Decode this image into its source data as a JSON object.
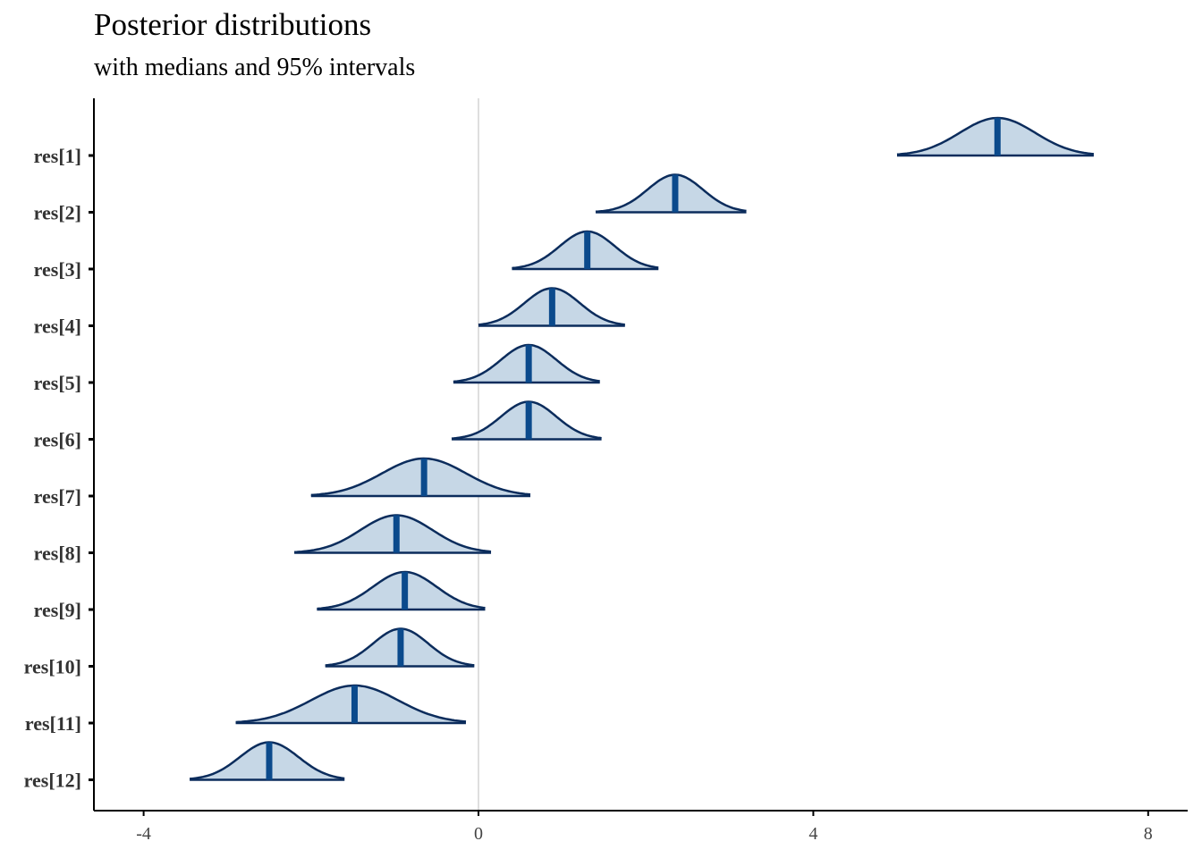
{
  "chart_data": {
    "type": "ridgeline",
    "title": "Posterior distributions",
    "subtitle": "with medians and 95% intervals",
    "xlim": [
      -4.6,
      8.5
    ],
    "x_ticks": [
      -4,
      0,
      4,
      8
    ],
    "x_tick_labels": [
      "-4",
      "0",
      "4",
      "8"
    ],
    "reference_line_x": 0,
    "colors": {
      "fill": "#c6d7e6",
      "outline": "#0b2c5c",
      "median": "#0b4a8c",
      "refline": "#dedede",
      "axis": "#000000"
    },
    "params": [
      {
        "label": "res[1]",
        "median": 6.2,
        "lo": 5.0,
        "hi": 7.35,
        "sd": 0.45
      },
      {
        "label": "res[2]",
        "median": 2.35,
        "lo": 1.4,
        "hi": 3.2,
        "sd": 0.33
      },
      {
        "label": "res[3]",
        "median": 1.3,
        "lo": 0.4,
        "hi": 2.15,
        "sd": 0.33
      },
      {
        "label": "res[4]",
        "median": 0.88,
        "lo": 0.0,
        "hi": 1.75,
        "sd": 0.33
      },
      {
        "label": "res[5]",
        "median": 0.6,
        "lo": -0.3,
        "hi": 1.45,
        "sd": 0.33
      },
      {
        "label": "res[6]",
        "median": 0.6,
        "lo": -0.32,
        "hi": 1.47,
        "sd": 0.33
      },
      {
        "label": "res[7]",
        "median": -0.65,
        "lo": -2.0,
        "hi": 0.62,
        "sd": 0.5
      },
      {
        "label": "res[8]",
        "median": -0.98,
        "lo": -2.2,
        "hi": 0.15,
        "sd": 0.43
      },
      {
        "label": "res[9]",
        "median": -0.88,
        "lo": -1.93,
        "hi": 0.08,
        "sd": 0.38
      },
      {
        "label": "res[10]",
        "median": -0.93,
        "lo": -1.83,
        "hi": -0.05,
        "sd": 0.33
      },
      {
        "label": "res[11]",
        "median": -1.48,
        "lo": -2.9,
        "hi": -0.15,
        "sd": 0.52
      },
      {
        "label": "res[12]",
        "median": -2.5,
        "lo": -3.45,
        "hi": -1.6,
        "sd": 0.35
      }
    ]
  }
}
